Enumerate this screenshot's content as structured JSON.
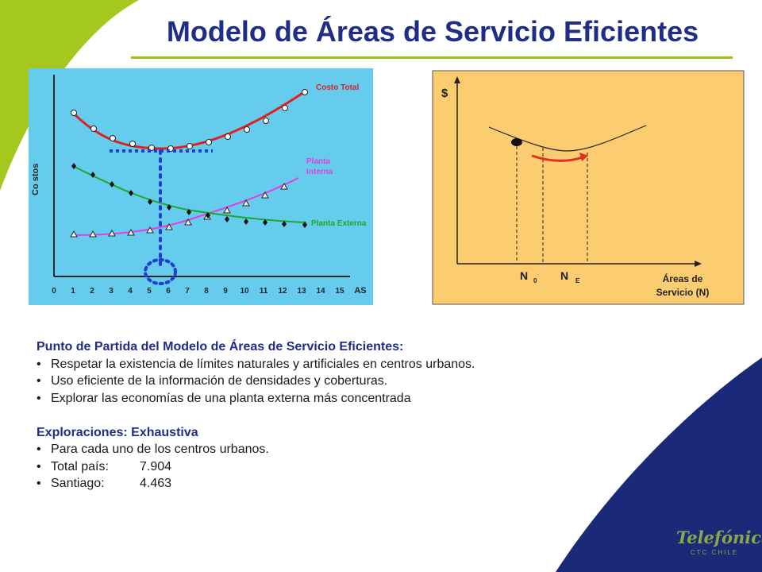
{
  "slide": {
    "title": "Modelo de Áreas de Servicio Eficientes",
    "colors": {
      "title": "#1f2d86",
      "accent_green": "#9ac31c",
      "accent_navy": "#1a2a78"
    }
  },
  "left_chart": {
    "ylabel": "Co stos",
    "xlabel": "AS",
    "x_ticks": [
      "0",
      "1",
      "2",
      "3",
      "4",
      "5",
      "6",
      "7",
      "8",
      "9",
      "10",
      "11",
      "12",
      "13",
      "14",
      "15"
    ],
    "series_labels": {
      "total": "Costo Total",
      "interna_1": "Planta",
      "interna_2": "Interna",
      "externa": "Planta Externa"
    },
    "colors": {
      "background": "#66ccee",
      "total": "#e02020",
      "interna": "#e040e0",
      "externa": "#1aaa2a",
      "marker": "#1f3fd0"
    }
  },
  "right_chart": {
    "ylabel": "$",
    "n0_label": "N",
    "n0_sub": "0",
    "ne_label": "N",
    "ne_sub": "E",
    "xlabel_1": "Áreas de",
    "xlabel_2": "Servicio (N)",
    "colors": {
      "background": "#fbcc70",
      "arrow": "#e03020"
    }
  },
  "content": {
    "heading1": "Punto de Partida del Modelo de Áreas de Servicio Eficientes:",
    "bullets1": [
      "Respetar la existencia de límites naturales y artificiales en centros urbanos.",
      "Uso eficiente de la información de densidades y coberturas.",
      "Explorar las economías de una planta externa más concentrada"
    ],
    "heading2": "Exploraciones: Exhaustiva",
    "bullet2_1": "Para cada uno de los centros urbanos.",
    "total_label": "Total país:",
    "total_value": "7.904",
    "santiago_label": "Santiago:",
    "santiago_value": "4.463"
  },
  "logo": {
    "word": "Telefónica",
    "sub": "CTC CHILE"
  }
}
